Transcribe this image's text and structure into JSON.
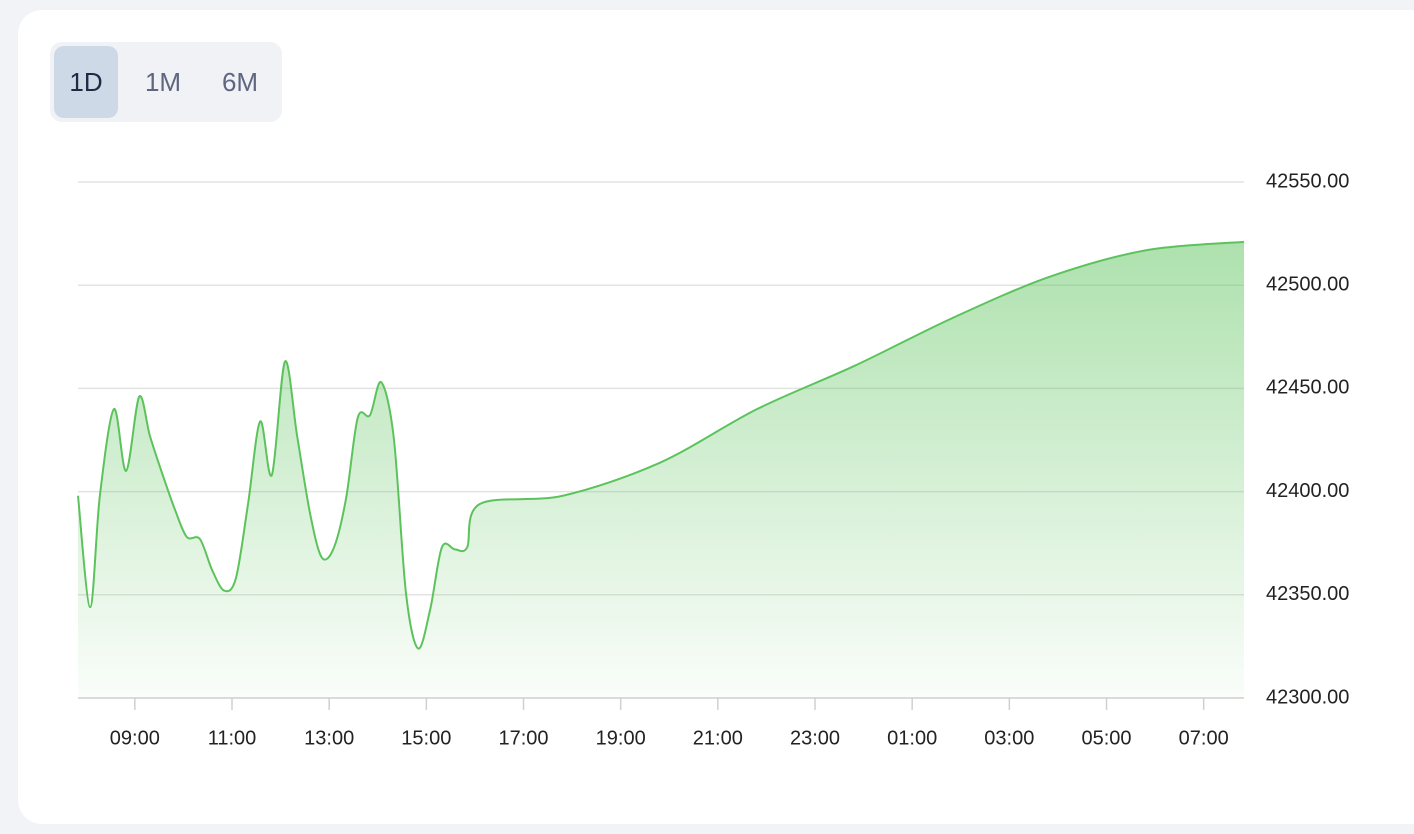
{
  "ui": {
    "tabs": [
      "1D",
      "1M",
      "6M"
    ],
    "active_tab": 0
  },
  "chart_data": {
    "type": "area",
    "color": "#5cc35c",
    "grid": true,
    "y_axis_side": "right",
    "x": [
      7.83,
      8.08,
      8.28,
      8.57,
      8.82,
      9.09,
      9.31,
      9.56,
      9.83,
      10.07,
      10.34,
      10.59,
      10.84,
      11.08,
      11.33,
      11.58,
      11.82,
      12.09,
      12.34,
      12.61,
      12.85,
      13.1,
      13.35,
      13.59,
      13.84,
      14.07,
      14.33,
      14.58,
      14.83,
      15.08,
      15.32,
      15.59,
      15.84,
      16.1,
      17.81,
      19.81,
      21.81,
      23.82,
      25.82,
      27.82,
      29.83,
      31.83
    ],
    "values": [
      42398,
      42344,
      42398,
      42440,
      42410,
      42446,
      42427,
      42409,
      42391,
      42378,
      42377,
      42362,
      42352,
      42358,
      42394,
      42434,
      42408,
      42463,
      42427,
      42389,
      42368,
      42373,
      42397,
      42436,
      42437,
      42453,
      42426,
      42351,
      42324,
      42343,
      42373,
      42372,
      42373,
      42394,
      42398,
      42414,
      42440,
      42461,
      42484,
      42504,
      42517,
      42521
    ],
    "xlim": [
      7.83,
      31.83
    ],
    "xticks": [
      {
        "value": 9,
        "label": "09:00"
      },
      {
        "value": 11,
        "label": "11:00"
      },
      {
        "value": 13,
        "label": "13:00"
      },
      {
        "value": 15,
        "label": "15:00"
      },
      {
        "value": 17,
        "label": "17:00"
      },
      {
        "value": 19,
        "label": "19:00"
      },
      {
        "value": 21,
        "label": "21:00"
      },
      {
        "value": 23,
        "label": "23:00"
      },
      {
        "value": 25,
        "label": "01:00"
      },
      {
        "value": 27,
        "label": "03:00"
      },
      {
        "value": 29,
        "label": "05:00"
      },
      {
        "value": 31,
        "label": "07:00"
      }
    ],
    "ylim": [
      42300,
      42550
    ],
    "yticks": [
      {
        "value": 42300,
        "label": "42300.00"
      },
      {
        "value": 42350,
        "label": "42350.00"
      },
      {
        "value": 42400,
        "label": "42400.00"
      },
      {
        "value": 42450,
        "label": "42450.00"
      },
      {
        "value": 42500,
        "label": "42500.00"
      },
      {
        "value": 42550,
        "label": "42550.00"
      }
    ]
  }
}
